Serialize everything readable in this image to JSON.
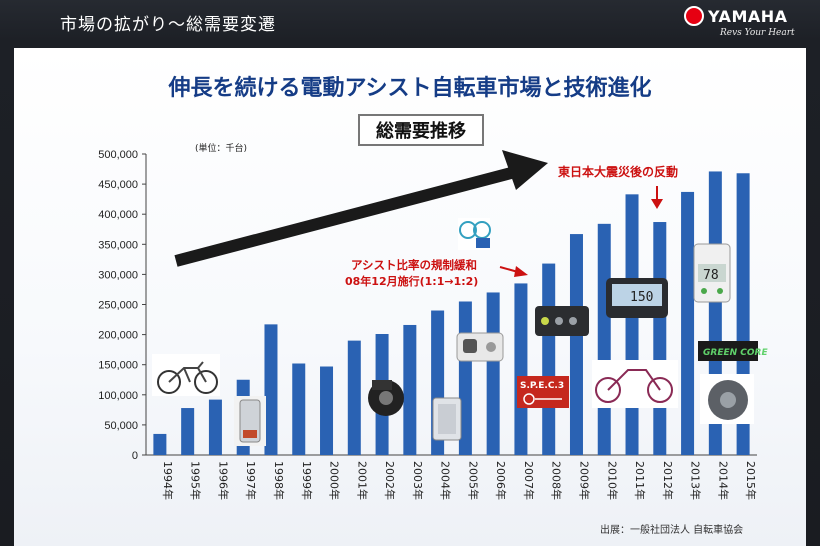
{
  "header": {
    "section_title": "市場の拡がり〜総需要変遷",
    "logo_text": "YAMAHA",
    "logo_tagline": "Revs Your Heart"
  },
  "main_title": "伸長を続ける電動アシスト自転車市場と技術進化",
  "chart_title": "総需要推移",
  "unit_label": "(単位：千台)",
  "source_label": "出展：一般社団法人 自転車協会",
  "annotations": {
    "earthquake": "東日本大震災後の反動",
    "deregulation_line1": "アシスト比率の規制緩和",
    "deregulation_line2": "08年12月施行(1:1→1:2)"
  },
  "product_labels": {
    "spec3": "S.P.E.C.3",
    "green_core": "GREEN CORE",
    "lcd_value": "150",
    "display_value": "78"
  },
  "colors": {
    "bar": "#2a62b3",
    "title": "#153c86",
    "annotation": "#cc1111",
    "arrow": "#1a1a1a",
    "brand_red": "#e60012"
  },
  "chart_data": {
    "type": "bar",
    "categories": [
      "1994年",
      "1995年",
      "1996年",
      "1997年",
      "1998年",
      "1999年",
      "2000年",
      "2001年",
      "2002年",
      "2003年",
      "2004年",
      "2005年",
      "2006年",
      "2007年",
      "2008年",
      "2009年",
      "2010年",
      "2011年",
      "2012年",
      "2013年",
      "2014年",
      "2015年"
    ],
    "values": [
      35000,
      78000,
      92000,
      125000,
      217000,
      152000,
      147000,
      190000,
      201000,
      216000,
      240000,
      255000,
      270000,
      285000,
      318000,
      367000,
      384000,
      433000,
      387000,
      437000,
      471000,
      468000
    ],
    "ylim": [
      0,
      500000
    ],
    "yticks": [
      0,
      50000,
      100000,
      150000,
      200000,
      250000,
      300000,
      350000,
      400000,
      450000,
      500000
    ],
    "ytick_labels": [
      "0",
      "50,000",
      "100,000",
      "150,000",
      "200,000",
      "250,000",
      "300,000",
      "350,000",
      "400,000",
      "450,000",
      "500,000"
    ],
    "grid": false
  }
}
